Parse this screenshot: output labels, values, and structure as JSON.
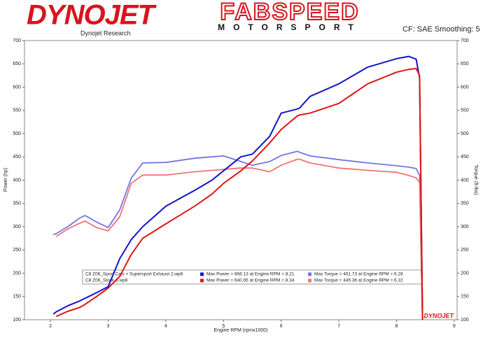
{
  "header": {
    "brand": "DYNOJET",
    "brand_sub": "Dynojet Research",
    "sponsor": "FABSPEED",
    "sponsor_sub": "MOTORSPORT",
    "correction": "CF: SAE Smoothing: 5",
    "watermark": "DYNOJET"
  },
  "chart_data": {
    "type": "line",
    "xlabel": "Engine RPM (rpmx1000)",
    "ylabel": "Power (hp)",
    "y2label": "Torque (ft-lbs)",
    "xlim": [
      1.55,
      9.05
    ],
    "xticks": [
      2,
      3,
      4,
      5,
      6,
      7,
      8,
      9
    ],
    "ylim": [
      100,
      700
    ],
    "yticks": [
      100,
      150,
      200,
      250,
      300,
      350,
      400,
      450,
      500,
      550,
      600,
      650,
      700
    ],
    "y2lim": [
      100,
      700
    ],
    "y2ticks": [
      100,
      150,
      200,
      250,
      300,
      350,
      400,
      450,
      500,
      550,
      600,
      650,
      700
    ],
    "runs": [
      "C8 Z06_Sport Cats + Supersport Exhaust 2.wp8",
      "C8 Z06_Stock 3.wp8"
    ],
    "x": [
      2.05,
      2.1,
      2.3,
      2.5,
      2.6,
      2.8,
      3.0,
      3.2,
      3.4,
      3.6,
      4.0,
      4.5,
      4.8,
      5.0,
      5.3,
      5.5,
      5.8,
      6.0,
      6.28,
      6.32,
      6.5,
      7.0,
      7.5,
      8.0,
      8.21,
      8.34,
      8.4,
      8.45
    ],
    "series": [
      {
        "name": "Max Power = 666.13 at Engine RPM = 8.21",
        "color": "#1414c8",
        "values": [
          112,
          117,
          130,
          140,
          146,
          158,
          171,
          231,
          272,
          300,
          344,
          378,
          400,
          420,
          450,
          456,
          494,
          544,
          553,
          555,
          580,
          607,
          643,
          661,
          666,
          660,
          620,
          100
        ]
      },
      {
        "name": "Max Power = 640.65 at Engine RPM = 8.34",
        "color": "#e01414",
        "values": [
          null,
          107,
          118,
          126,
          133,
          150,
          168,
          193,
          240,
          275,
          306,
          344,
          370,
          393,
          420,
          441,
          480,
          509,
          538,
          540,
          544,
          565,
          607,
          632,
          638,
          640,
          625,
          100
        ]
      },
      {
        "name": "Max Torque = 461.73 at Engine RPM = 6.28",
        "color": "#7474e4",
        "axis": "y2",
        "values": [
          283,
          285,
          300,
          318,
          324,
          310,
          298,
          336,
          404,
          437,
          438,
          447,
          450,
          452,
          440,
          432,
          440,
          453,
          462,
          460,
          452,
          444,
          437,
          431,
          428,
          425,
          410,
          100
        ]
      },
      {
        "name": "Max Torque = 445.36 at Engine RPM = 6.32",
        "color": "#f07474",
        "axis": "y2",
        "values": [
          null,
          279,
          295,
          307,
          312,
          298,
          291,
          321,
          393,
          411,
          411,
          418,
          421,
          423,
          426,
          426,
          418,
          432,
          445,
          445,
          437,
          426,
          421,
          417,
          410,
          405,
          395,
          100
        ]
      }
    ]
  }
}
